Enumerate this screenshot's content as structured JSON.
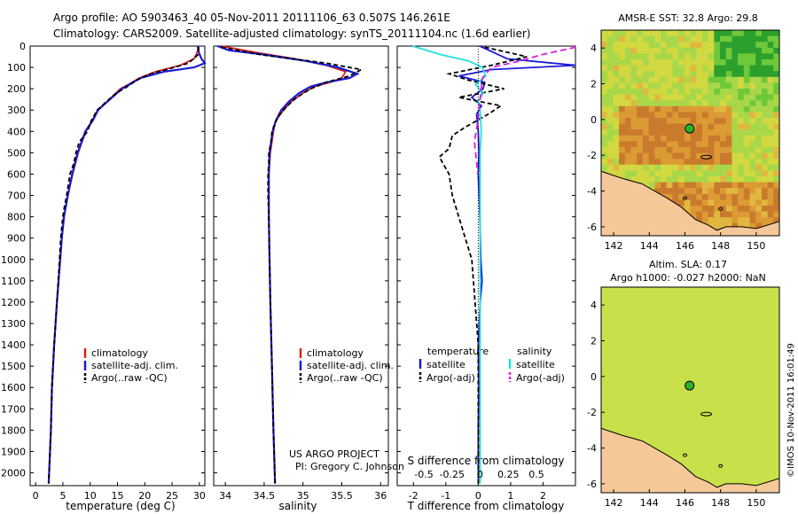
{
  "title": {
    "line1": "Argo profile: AO 5903463_40 05-Nov-2011 20111106_63 0.507S 146.261E",
    "line2": "Climatology: CARS2009. Satellite-adjusted climatology: synTS_20111104.nc (1.6d earlier)"
  },
  "colors": {
    "climatology": "#e0201c",
    "satellite": "#1a1ad6",
    "argo": "#000000",
    "satellite_salinity": "#22e0e0",
    "argo_salinity_adj": "#dd1ddd",
    "land": "#f5c89a"
  },
  "credits": {
    "project": "US ARGO PROJECT",
    "pi": "PI: Gregory C. Johnson",
    "stamp": "©IMOS 10-Nov-2011 16:01:49"
  },
  "chart_data": [
    {
      "type": "line",
      "name": "temperature-profile",
      "xlabel": "temperature (deg C)",
      "ylabel": "",
      "xlim": [
        -1,
        31
      ],
      "ylim": [
        2060,
        0
      ],
      "xticks": [
        0,
        5,
        10,
        15,
        20,
        25,
        30
      ],
      "yticks": [
        0,
        100,
        200,
        300,
        400,
        500,
        600,
        700,
        800,
        900,
        1000,
        1100,
        1200,
        1300,
        1400,
        1500,
        1600,
        1700,
        1800,
        1900,
        2000
      ],
      "legend": [
        "climatology",
        "satellite-adj. clim.",
        "Argo(..raw -QC)"
      ],
      "series": [
        {
          "name": "climatology",
          "depth": [
            0,
            30,
            60,
            90,
            120,
            150,
            180,
            200,
            250,
            300,
            350,
            400,
            500,
            600,
            700,
            800,
            900,
            1000,
            1200,
            1400,
            1600,
            1800,
            2050
          ],
          "values": [
            29.8,
            29.6,
            29.0,
            26.5,
            22.0,
            19.0,
            17.0,
            15.5,
            13.5,
            11.5,
            10.5,
            9.2,
            7.8,
            6.8,
            5.9,
            5.2,
            4.8,
            4.5,
            3.9,
            3.4,
            3.0,
            2.8,
            2.4
          ]
        },
        {
          "name": "satellite-adj. clim.",
          "depth": [
            0,
            30,
            60,
            80,
            100,
            120,
            150,
            180,
            200,
            250,
            300,
            350,
            400,
            500,
            600,
            700,
            800,
            900,
            1000,
            1200,
            1400,
            1600,
            1800,
            2050
          ],
          "values": [
            29.7,
            29.9,
            30.4,
            31.0,
            29.0,
            23.5,
            19.2,
            17.2,
            15.8,
            13.6,
            11.4,
            10.4,
            9.1,
            7.7,
            6.7,
            5.9,
            5.2,
            4.8,
            4.5,
            3.9,
            3.4,
            3.0,
            2.8,
            2.4
          ]
        },
        {
          "name": "Argo(..raw -QC)",
          "depth": [
            5,
            40,
            80,
            110,
            130,
            160,
            190,
            220,
            260,
            300,
            350,
            400,
            450,
            500,
            550,
            600,
            650,
            700,
            750,
            800,
            900,
            1000,
            1200,
            1400,
            1600,
            1800,
            2050
          ],
          "values": [
            29.9,
            29.8,
            28.0,
            24.0,
            21.0,
            18.5,
            16.8,
            14.8,
            13.0,
            11.3,
            10.2,
            9.5,
            8.0,
            7.4,
            7.0,
            6.3,
            6.0,
            5.7,
            5.3,
            5.0,
            4.6,
            4.4,
            3.9,
            3.4,
            3.0,
            2.8,
            2.4
          ]
        }
      ]
    },
    {
      "type": "line",
      "name": "salinity-profile",
      "xlabel": "salinity",
      "ylabel": "",
      "xlim": [
        33.85,
        36.1
      ],
      "ylim": [
        2060,
        0
      ],
      "xticks": [
        34,
        34.5,
        35,
        35.5,
        36
      ],
      "xtick_labels": [
        "34",
        "34.5",
        "35",
        "35.5",
        "36"
      ],
      "legend": [
        "climatology",
        "satellite-adj. clim.",
        "Argo(..raw -QC)"
      ],
      "series": [
        {
          "name": "climatology",
          "depth": [
            0,
            30,
            60,
            90,
            120,
            150,
            170,
            190,
            220,
            260,
            300,
            350,
            400,
            500,
            600,
            800,
            1000,
            1200,
            1500,
            1800,
            2050
          ],
          "values": [
            33.95,
            34.4,
            34.9,
            35.3,
            35.55,
            35.5,
            35.35,
            35.15,
            35.0,
            34.85,
            34.75,
            34.65,
            34.62,
            34.58,
            34.56,
            34.56,
            34.57,
            34.58,
            34.6,
            34.62,
            34.64
          ]
        },
        {
          "name": "satellite-adj. clim.",
          "depth": [
            0,
            20,
            40,
            70,
            100,
            130,
            150,
            170,
            190,
            220,
            260,
            300,
            350,
            400,
            500,
            600,
            800,
            1000,
            1200,
            1500,
            1800,
            2050
          ],
          "values": [
            33.9,
            34.05,
            34.5,
            35.05,
            35.45,
            35.7,
            35.6,
            35.3,
            35.1,
            34.95,
            34.82,
            34.72,
            34.65,
            34.61,
            34.57,
            34.56,
            34.56,
            34.57,
            34.58,
            34.6,
            34.62,
            34.64
          ]
        },
        {
          "name": "Argo(..raw -QC)",
          "depth": [
            5,
            40,
            80,
            110,
            140,
            170,
            200,
            240,
            280,
            320,
            360,
            400,
            450,
            500,
            550,
            600,
            700,
            800,
            1000,
            1200,
            1500,
            1800,
            2050
          ],
          "values": [
            33.95,
            34.45,
            35.3,
            35.75,
            35.6,
            35.3,
            35.1,
            34.92,
            34.8,
            34.7,
            34.64,
            34.6,
            34.59,
            34.56,
            34.56,
            34.55,
            34.55,
            34.56,
            34.57,
            34.58,
            34.6,
            34.62,
            34.64
          ]
        }
      ]
    },
    {
      "type": "line",
      "name": "difference-profile",
      "xlabel": "T difference from climatology",
      "xlabel_top": "S difference from climatology",
      "xlim": [
        -2.5,
        3.0
      ],
      "ylim": [
        2060,
        0
      ],
      "xticks": [
        -2,
        -1,
        0,
        1,
        2
      ],
      "sticks": [
        -0.5,
        -0.25,
        0,
        0.25,
        0.5
      ],
      "stick_labels": [
        "-0.5",
        "-0.25",
        "0",
        "0.25",
        "0.5"
      ],
      "legend_left_title": "temperature",
      "legend_right_title": "salinity",
      "legend": [
        "satellite",
        "Argo(-adj)",
        "satellite",
        "Argo(-adj)"
      ],
      "series": [
        {
          "name": "temperature satellite",
          "depth": [
            0,
            60,
            90,
            110,
            140,
            170,
            200,
            240,
            280,
            320,
            400,
            500,
            600,
            800,
            1000,
            1100,
            1200,
            1400,
            1600,
            1800,
            2050
          ],
          "values": [
            0.05,
            0.9,
            3.0,
            0.4,
            -0.6,
            0.2,
            0.15,
            -0.2,
            0.1,
            -0.05,
            0.0,
            0.02,
            0.0,
            0.05,
            0.08,
            0.12,
            0.06,
            0.0,
            0.02,
            0.0,
            0.0
          ]
        },
        {
          "name": "temperature Argo(-adj)",
          "depth": [
            5,
            50,
            90,
            130,
            160,
            200,
            240,
            280,
            320,
            380,
            420,
            480,
            520,
            600,
            700,
            800,
            1000,
            1400,
            1800,
            2050
          ],
          "values": [
            0.2,
            1.5,
            0.4,
            -0.9,
            -0.3,
            0.8,
            -0.6,
            0.7,
            0.3,
            -0.4,
            -0.8,
            -0.9,
            -1.2,
            -0.9,
            -0.8,
            -0.6,
            -0.2,
            0.0,
            0.0,
            0.0
          ]
        },
        {
          "name": "salinity satellite",
          "depth": [
            0,
            40,
            70,
            100,
            140,
            180,
            220,
            260,
            300,
            400,
            500,
            700,
            900,
            1200,
            1600,
            2050
          ],
          "values": [
            -0.6,
            -0.35,
            -0.1,
            0.02,
            0.05,
            -0.04,
            0.03,
            -0.02,
            0.0,
            0.01,
            0.0,
            0.0,
            0.0,
            0.0,
            0.0,
            0.0
          ]
        },
        {
          "name": "salinity Argo(-adj)",
          "depth": [
            5,
            40,
            70,
            100,
            150,
            250,
            350,
            450,
            550,
            600
          ],
          "values": [
            0.85,
            0.55,
            0.35,
            0.1,
            0.02,
            0.0,
            -0.02,
            -0.05,
            -0.03,
            -0.02
          ]
        }
      ]
    },
    {
      "type": "heatmap",
      "name": "sst-map",
      "title": "AMSR-E SST: 32.8 Argo: 29.8",
      "xlim": [
        141.3,
        151.3
      ],
      "ylim": [
        -6.5,
        5.0
      ],
      "xticks": [
        142,
        144,
        146,
        148,
        150
      ],
      "yticks": [
        4,
        2,
        0,
        -2,
        -4,
        -6
      ],
      "argo_position": [
        146.261,
        -0.507
      ]
    },
    {
      "type": "heatmap",
      "name": "sla-map",
      "title_line1": "Altim. SLA: 0.17",
      "title_line2": "Argo h1000: -0.027 h2000: NaN",
      "xlim": [
        141.3,
        151.3
      ],
      "ylim": [
        -6.5,
        5.0
      ],
      "xticks": [
        142,
        144,
        146,
        148,
        150
      ],
      "yticks": [
        4,
        2,
        0,
        -2,
        -4,
        -6
      ],
      "argo_position": [
        146.261,
        -0.507
      ]
    }
  ]
}
